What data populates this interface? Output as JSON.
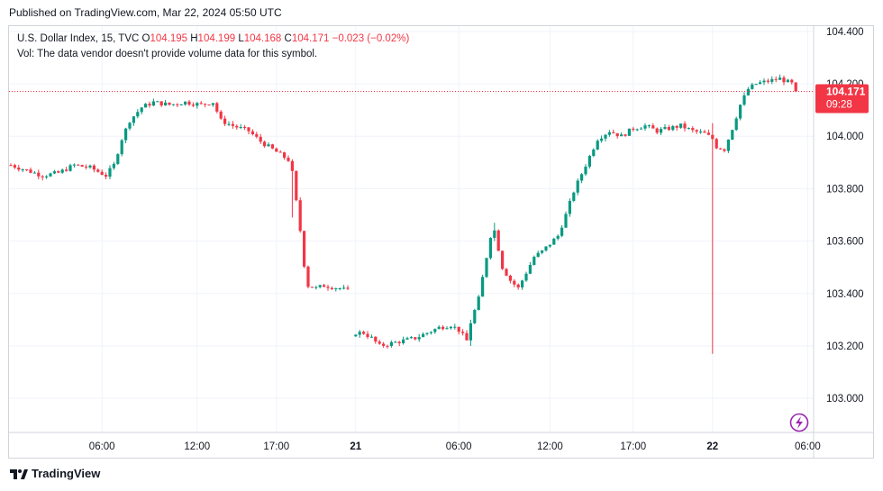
{
  "published": "Published on TradingView.com, Mar 22, 2024 05:50 UTC",
  "legend": {
    "symbol": "U.S. Dollar Index, 15, TVC",
    "o_label": "O",
    "o": "104.195",
    "h_label": "H",
    "h": "104.199",
    "l_label": "L",
    "l": "104.168",
    "c_label": "C",
    "c": "104.171",
    "change": "−0.023 (−0.02%)",
    "vol_note": "Vol: The data vendor doesn't provide volume data for this symbol."
  },
  "brand": "TradingView",
  "colors": {
    "up": "#089981",
    "down": "#f23645",
    "grid": "#f0f3fa",
    "text": "#131722",
    "price_label": "#f23645"
  },
  "chart_data": {
    "type": "candlestick",
    "interval": "15",
    "ylim": [
      102.87,
      104.42
    ],
    "y_ticks": [
      "104.400",
      "104.200",
      "104.000",
      "103.800",
      "103.600",
      "103.400",
      "103.200",
      "103.000"
    ],
    "y_tick_values": [
      104.4,
      104.2,
      104.0,
      103.8,
      103.6,
      103.4,
      103.2,
      103.0
    ],
    "x_ticks": [
      {
        "label": "06:00",
        "bar": 23,
        "bold": false
      },
      {
        "label": "12:00",
        "bar": 47,
        "bold": false
      },
      {
        "label": "17:00",
        "bar": 67,
        "bold": false
      },
      {
        "label": "21",
        "bar": 87,
        "bold": true
      },
      {
        "label": "06:00",
        "bar": 113,
        "bold": false
      },
      {
        "label": "12:00",
        "bar": 136,
        "bold": false
      },
      {
        "label": "17:00",
        "bar": 157,
        "bold": false
      },
      {
        "label": "22",
        "bar": 177,
        "bold": true
      },
      {
        "label": "06:00",
        "bar": 201,
        "bold": false
      }
    ],
    "last_price": "104.171",
    "last_value": 104.171,
    "countdown": "09:28",
    "gaps": [
      {
        "after_bar": 85,
        "bars": 1
      }
    ],
    "anchors": [
      [
        0,
        103.89
      ],
      [
        4,
        103.87
      ],
      [
        8,
        103.85
      ],
      [
        12,
        103.86
      ],
      [
        16,
        103.89
      ],
      [
        20,
        103.88
      ],
      [
        24,
        103.85
      ],
      [
        26,
        103.89
      ],
      [
        28,
        103.99
      ],
      [
        30,
        104.06
      ],
      [
        33,
        104.11
      ],
      [
        36,
        104.13
      ],
      [
        40,
        104.12
      ],
      [
        44,
        104.13
      ],
      [
        48,
        104.12
      ],
      [
        51,
        104.13
      ],
      [
        53,
        104.06
      ],
      [
        56,
        104.04
      ],
      [
        60,
        104.02
      ],
      [
        63,
        103.98
      ],
      [
        67,
        103.94
      ],
      [
        70,
        103.91
      ],
      [
        71,
        103.86
      ],
      [
        72,
        103.75
      ],
      [
        73,
        103.64
      ],
      [
        74,
        103.51
      ],
      [
        75,
        103.43
      ],
      [
        77,
        103.42
      ],
      [
        79,
        103.43
      ],
      [
        83,
        103.42
      ],
      [
        85,
        103.41
      ],
      [
        87,
        103.25
      ],
      [
        89,
        103.25
      ],
      [
        91,
        103.23
      ],
      [
        93,
        103.2
      ],
      [
        96,
        103.21
      ],
      [
        99,
        103.22
      ],
      [
        102,
        103.23
      ],
      [
        105,
        103.25
      ],
      [
        108,
        103.27
      ],
      [
        111,
        103.28
      ],
      [
        113,
        103.26
      ],
      [
        115,
        103.22
      ],
      [
        116,
        103.29
      ],
      [
        118,
        103.38
      ],
      [
        119,
        103.46
      ],
      [
        121,
        103.62
      ],
      [
        122,
        103.64
      ],
      [
        124,
        103.5
      ],
      [
        126,
        103.45
      ],
      [
        128,
        103.42
      ],
      [
        130,
        103.48
      ],
      [
        132,
        103.54
      ],
      [
        134,
        103.56
      ],
      [
        136,
        103.59
      ],
      [
        138,
        103.62
      ],
      [
        140,
        103.7
      ],
      [
        142,
        103.79
      ],
      [
        145,
        103.89
      ],
      [
        148,
        103.99
      ],
      [
        151,
        104.02
      ],
      [
        154,
        104.0
      ],
      [
        157,
        104.03
      ],
      [
        160,
        104.04
      ],
      [
        163,
        104.02
      ],
      [
        166,
        104.03
      ],
      [
        169,
        104.04
      ],
      [
        172,
        104.02
      ],
      [
        175,
        104.01
      ],
      [
        177,
        103.99
      ],
      [
        178,
        103.96
      ],
      [
        180,
        103.95
      ],
      [
        182,
        104.03
      ],
      [
        184,
        104.12
      ],
      [
        186,
        104.18
      ],
      [
        188,
        104.2
      ],
      [
        191,
        104.21
      ],
      [
        194,
        104.22
      ],
      [
        197,
        104.2
      ],
      [
        198,
        104.171
      ]
    ],
    "spikes": [
      [
        177,
        103.17,
        104.05
      ],
      [
        122,
        103.6,
        103.67
      ],
      [
        71,
        103.69,
        103.88
      ],
      [
        116,
        103.2,
        103.3
      ]
    ]
  }
}
